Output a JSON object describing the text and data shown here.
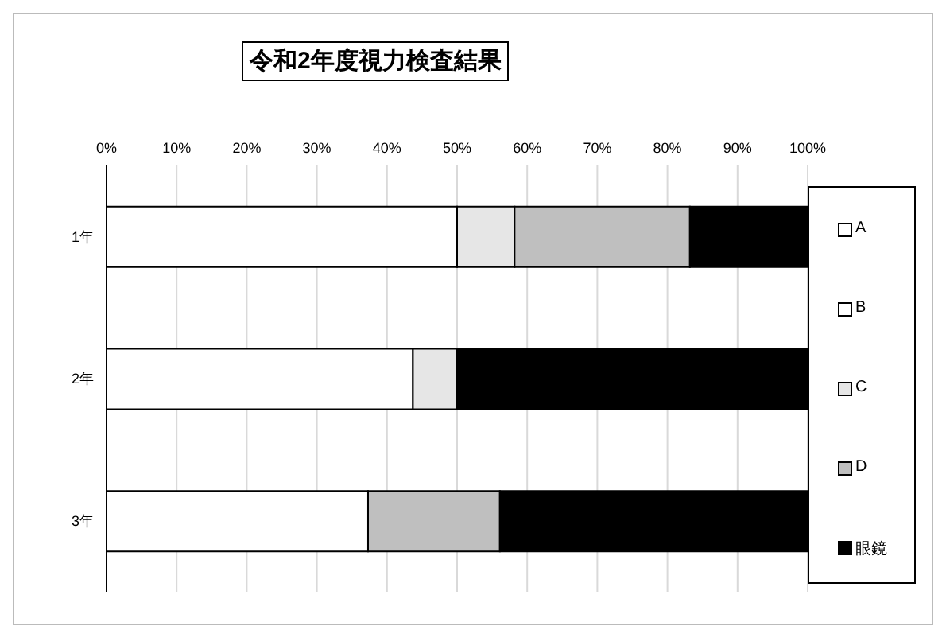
{
  "chart_data": {
    "type": "bar",
    "orientation": "horizontal",
    "stacked": true,
    "title": "令和2年度視力検査結果",
    "categories": [
      "1年",
      "2年",
      "3年"
    ],
    "series": [
      {
        "name": "A",
        "color": "#ffffff",
        "values": [
          50,
          43.7,
          37.3
        ]
      },
      {
        "name": "B",
        "color": "#ffffff",
        "values": [
          0,
          0,
          0
        ]
      },
      {
        "name": "C",
        "color": "#e6e6e6",
        "values": [
          8.2,
          6.2,
          0
        ]
      },
      {
        "name": "D",
        "color": "#bfbfbf",
        "values": [
          25,
          0,
          18.8
        ]
      },
      {
        "name": "眼鏡",
        "color": "#000000",
        "values": [
          16.8,
          50.1,
          43.9
        ]
      }
    ],
    "xlim": [
      0,
      100
    ],
    "xticks": [
      {
        "value": 0,
        "label": "0%"
      },
      {
        "value": 10,
        "label": "10%"
      },
      {
        "value": 20,
        "label": "20%"
      },
      {
        "value": 30,
        "label": "30%"
      },
      {
        "value": 40,
        "label": "40%"
      },
      {
        "value": 50,
        "label": "50%"
      },
      {
        "value": 60,
        "label": "60%"
      },
      {
        "value": 70,
        "label": "70%"
      },
      {
        "value": 80,
        "label": "80%"
      },
      {
        "value": 90,
        "label": "90%"
      },
      {
        "value": 100,
        "label": "100%"
      }
    ],
    "grid": "x",
    "legend": "right"
  }
}
